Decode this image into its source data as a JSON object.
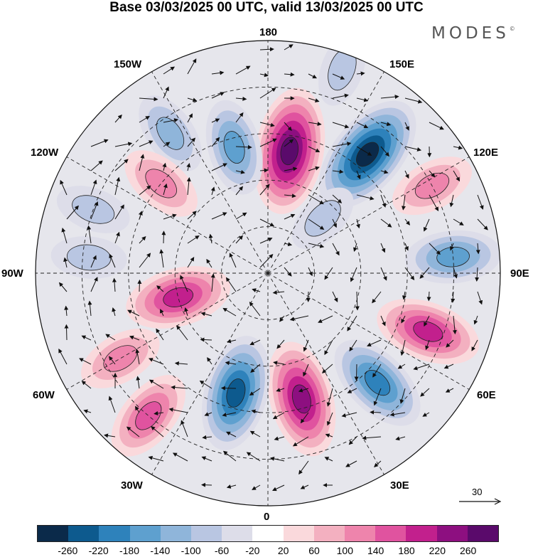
{
  "title": "Base 03/03/2025 00 UTC, valid 13/03/2025 00 UTC",
  "logo": "MODES",
  "logo_mark": "©",
  "longitude_labels": {
    "top": "180",
    "bottom": "0",
    "left": "90W",
    "right": "90E",
    "upper_left_1": "150W",
    "upper_left_2": "120W",
    "upper_right_1": "150E",
    "upper_right_2": "120E",
    "lower_left_1": "60W",
    "lower_left_2": "30W",
    "lower_right_1": "60E",
    "lower_right_2": "30E"
  },
  "reference_vector": {
    "label": "30"
  },
  "colorbar": {
    "colors": [
      "#0b2a4a",
      "#0d5a8e",
      "#2e82bb",
      "#5ea0cf",
      "#8fb5da",
      "#b9c6e2",
      "#dddde9",
      "#ffffff",
      "#fad9dc",
      "#f3b0c0",
      "#ee84ac",
      "#e0539f",
      "#c2208d",
      "#8d0f80",
      "#5a0a6b"
    ],
    "tick_labels": [
      "-260",
      "-220",
      "-180",
      "-140",
      "-100",
      "-60",
      "-20",
      "20",
      "60",
      "100",
      "140",
      "180",
      "220",
      "260"
    ]
  },
  "field_anomalies": [
    {
      "lon_deg": 170,
      "colat_deg": 40,
      "value": 260
    },
    {
      "lon_deg": 140,
      "colat_deg": 50,
      "value": -260
    },
    {
      "lon_deg": 195,
      "colat_deg": 42,
      "value": -140
    },
    {
      "lon_deg": 118,
      "colat_deg": 60,
      "value": 100
    },
    {
      "lon_deg": 95,
      "colat_deg": 60,
      "value": -140
    },
    {
      "lon_deg": 70,
      "colat_deg": 55,
      "value": 180
    },
    {
      "lon_deg": 45,
      "colat_deg": 50,
      "value": -180
    },
    {
      "lon_deg": 15,
      "colat_deg": 42,
      "value": 220
    },
    {
      "lon_deg": -15,
      "colat_deg": 40,
      "value": -220
    },
    {
      "lon_deg": -75,
      "colat_deg": 30,
      "value": 180
    },
    {
      "lon_deg": -40,
      "colat_deg": 60,
      "value": 140
    },
    {
      "lon_deg": -145,
      "colat_deg": 55,
      "value": -100
    },
    {
      "lon_deg": -130,
      "colat_deg": 45,
      "value": 100
    },
    {
      "lon_deg": -110,
      "colat_deg": 60,
      "value": -60
    },
    {
      "lon_deg": -95,
      "colat_deg": 58,
      "value": -60
    },
    {
      "lon_deg": 135,
      "colat_deg": 25,
      "value": -60
    },
    {
      "lon_deg": -60,
      "colat_deg": 55,
      "value": 100
    },
    {
      "lon_deg": 160,
      "colat_deg": 70,
      "value": -60
    }
  ]
}
